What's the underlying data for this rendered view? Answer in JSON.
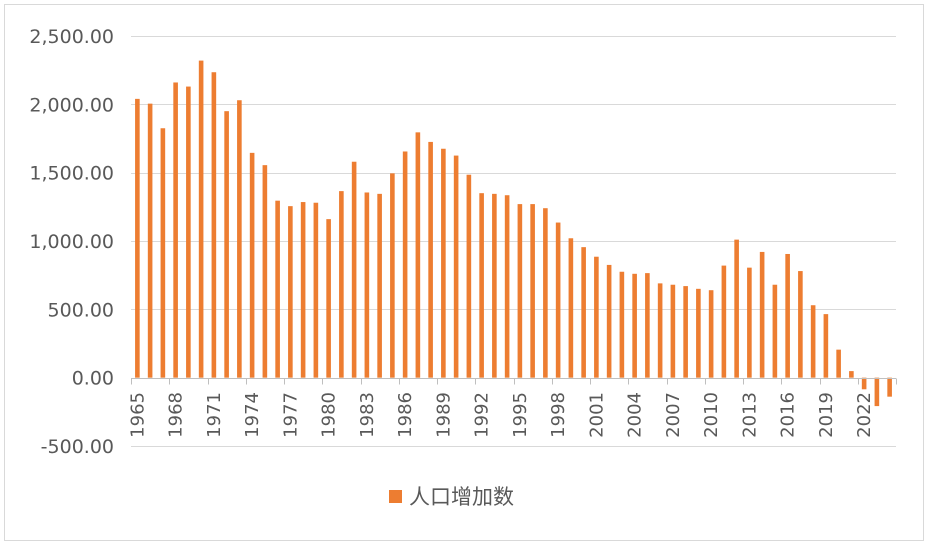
{
  "chart_data": {
    "type": "bar",
    "title": "",
    "xlabel": "",
    "ylabel": "",
    "ylim": [
      -500,
      2500
    ],
    "yticks": [
      2500,
      2000,
      1500,
      1000,
      500,
      0,
      -500
    ],
    "ytick_labels": [
      "2,500.00",
      "2,000.00",
      "1,500.00",
      "1,000.00",
      "500.00",
      "0.00",
      "-500.00"
    ],
    "xtick_labels": [
      "1965",
      "1968",
      "1971",
      "1974",
      "1977",
      "1980",
      "1983",
      "1986",
      "1989",
      "1992",
      "1995",
      "1998",
      "2001",
      "2004",
      "2007",
      "2010",
      "2013",
      "2016",
      "2019",
      "2022"
    ],
    "grid": true,
    "legend_position": "bottom",
    "bar_color": "#ed7d31",
    "categories": [
      "1965",
      "1966",
      "1967",
      "1968",
      "1969",
      "1970",
      "1971",
      "1972",
      "1973",
      "1974",
      "1975",
      "1976",
      "1977",
      "1978",
      "1979",
      "1980",
      "1981",
      "1982",
      "1983",
      "1984",
      "1985",
      "1986",
      "1987",
      "1988",
      "1989",
      "1990",
      "1991",
      "1992",
      "1993",
      "1994",
      "1995",
      "1996",
      "1997",
      "1998",
      "1999",
      "2000",
      "2001",
      "2002",
      "2003",
      "2004",
      "2005",
      "2006",
      "2007",
      "2008",
      "2009",
      "2010",
      "2011",
      "2012",
      "2013",
      "2014",
      "2015",
      "2016",
      "2017",
      "2018",
      "2019",
      "2020",
      "2021",
      "2022",
      "2023",
      "2024"
    ],
    "series": [
      {
        "name": "人口增加数",
        "values": [
          2040,
          2005,
          1825,
          2160,
          2130,
          2320,
          2235,
          1950,
          2030,
          1645,
          1555,
          1295,
          1255,
          1285,
          1280,
          1160,
          1365,
          1580,
          1355,
          1345,
          1495,
          1655,
          1795,
          1725,
          1675,
          1625,
          1485,
          1350,
          1345,
          1335,
          1270,
          1270,
          1240,
          1135,
          1020,
          955,
          885,
          825,
          775,
          760,
          765,
          690,
          680,
          670,
          650,
          640,
          820,
          1010,
          805,
          920,
          680,
          905,
          780,
          530,
          465,
          205,
          48,
          -85,
          -208,
          -139
        ]
      }
    ]
  }
}
